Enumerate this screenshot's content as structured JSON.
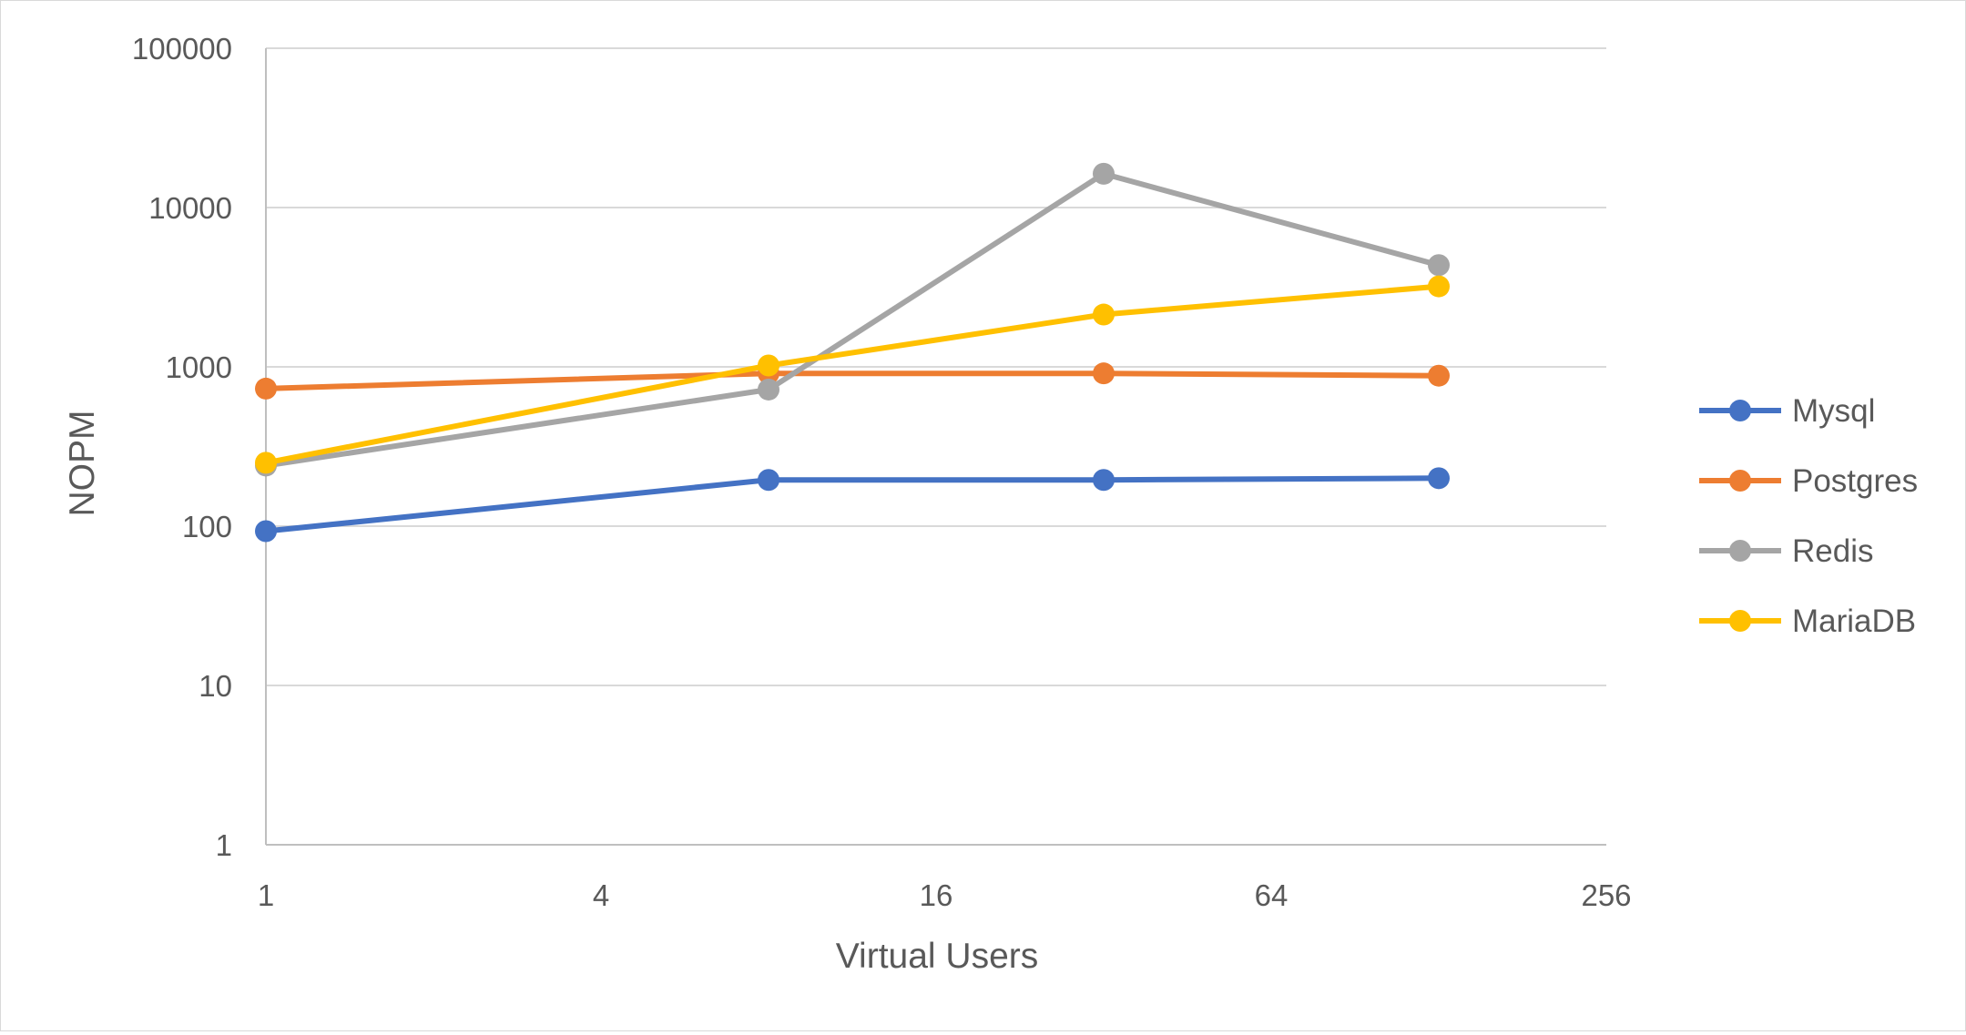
{
  "chart_data": {
    "type": "line",
    "title": "",
    "xlabel": "Virtual Users",
    "ylabel": "NOPM",
    "x_scale": "log2",
    "y_scale": "log10",
    "xlim": [
      1,
      256
    ],
    "ylim": [
      1,
      100000
    ],
    "x_ticks": [
      "1",
      "4",
      "16",
      "64",
      "256"
    ],
    "y_ticks": [
      "1",
      "10",
      "100",
      "1000",
      "10000",
      "100000"
    ],
    "grid": "horizontal",
    "legend_position": "right",
    "x": [
      1,
      8,
      32,
      128
    ],
    "series": [
      {
        "name": "Mysql",
        "color": "#4472c4",
        "values": [
          93,
          195,
          195,
          200
        ]
      },
      {
        "name": "Postgres",
        "color": "#ed7d31",
        "values": [
          730,
          910,
          910,
          880
        ]
      },
      {
        "name": "Redis",
        "color": "#a5a5a5",
        "values": [
          240,
          720,
          16300,
          4350
        ]
      },
      {
        "name": "MariaDB",
        "color": "#ffc000",
        "values": [
          250,
          1020,
          2130,
          3200
        ]
      }
    ]
  }
}
